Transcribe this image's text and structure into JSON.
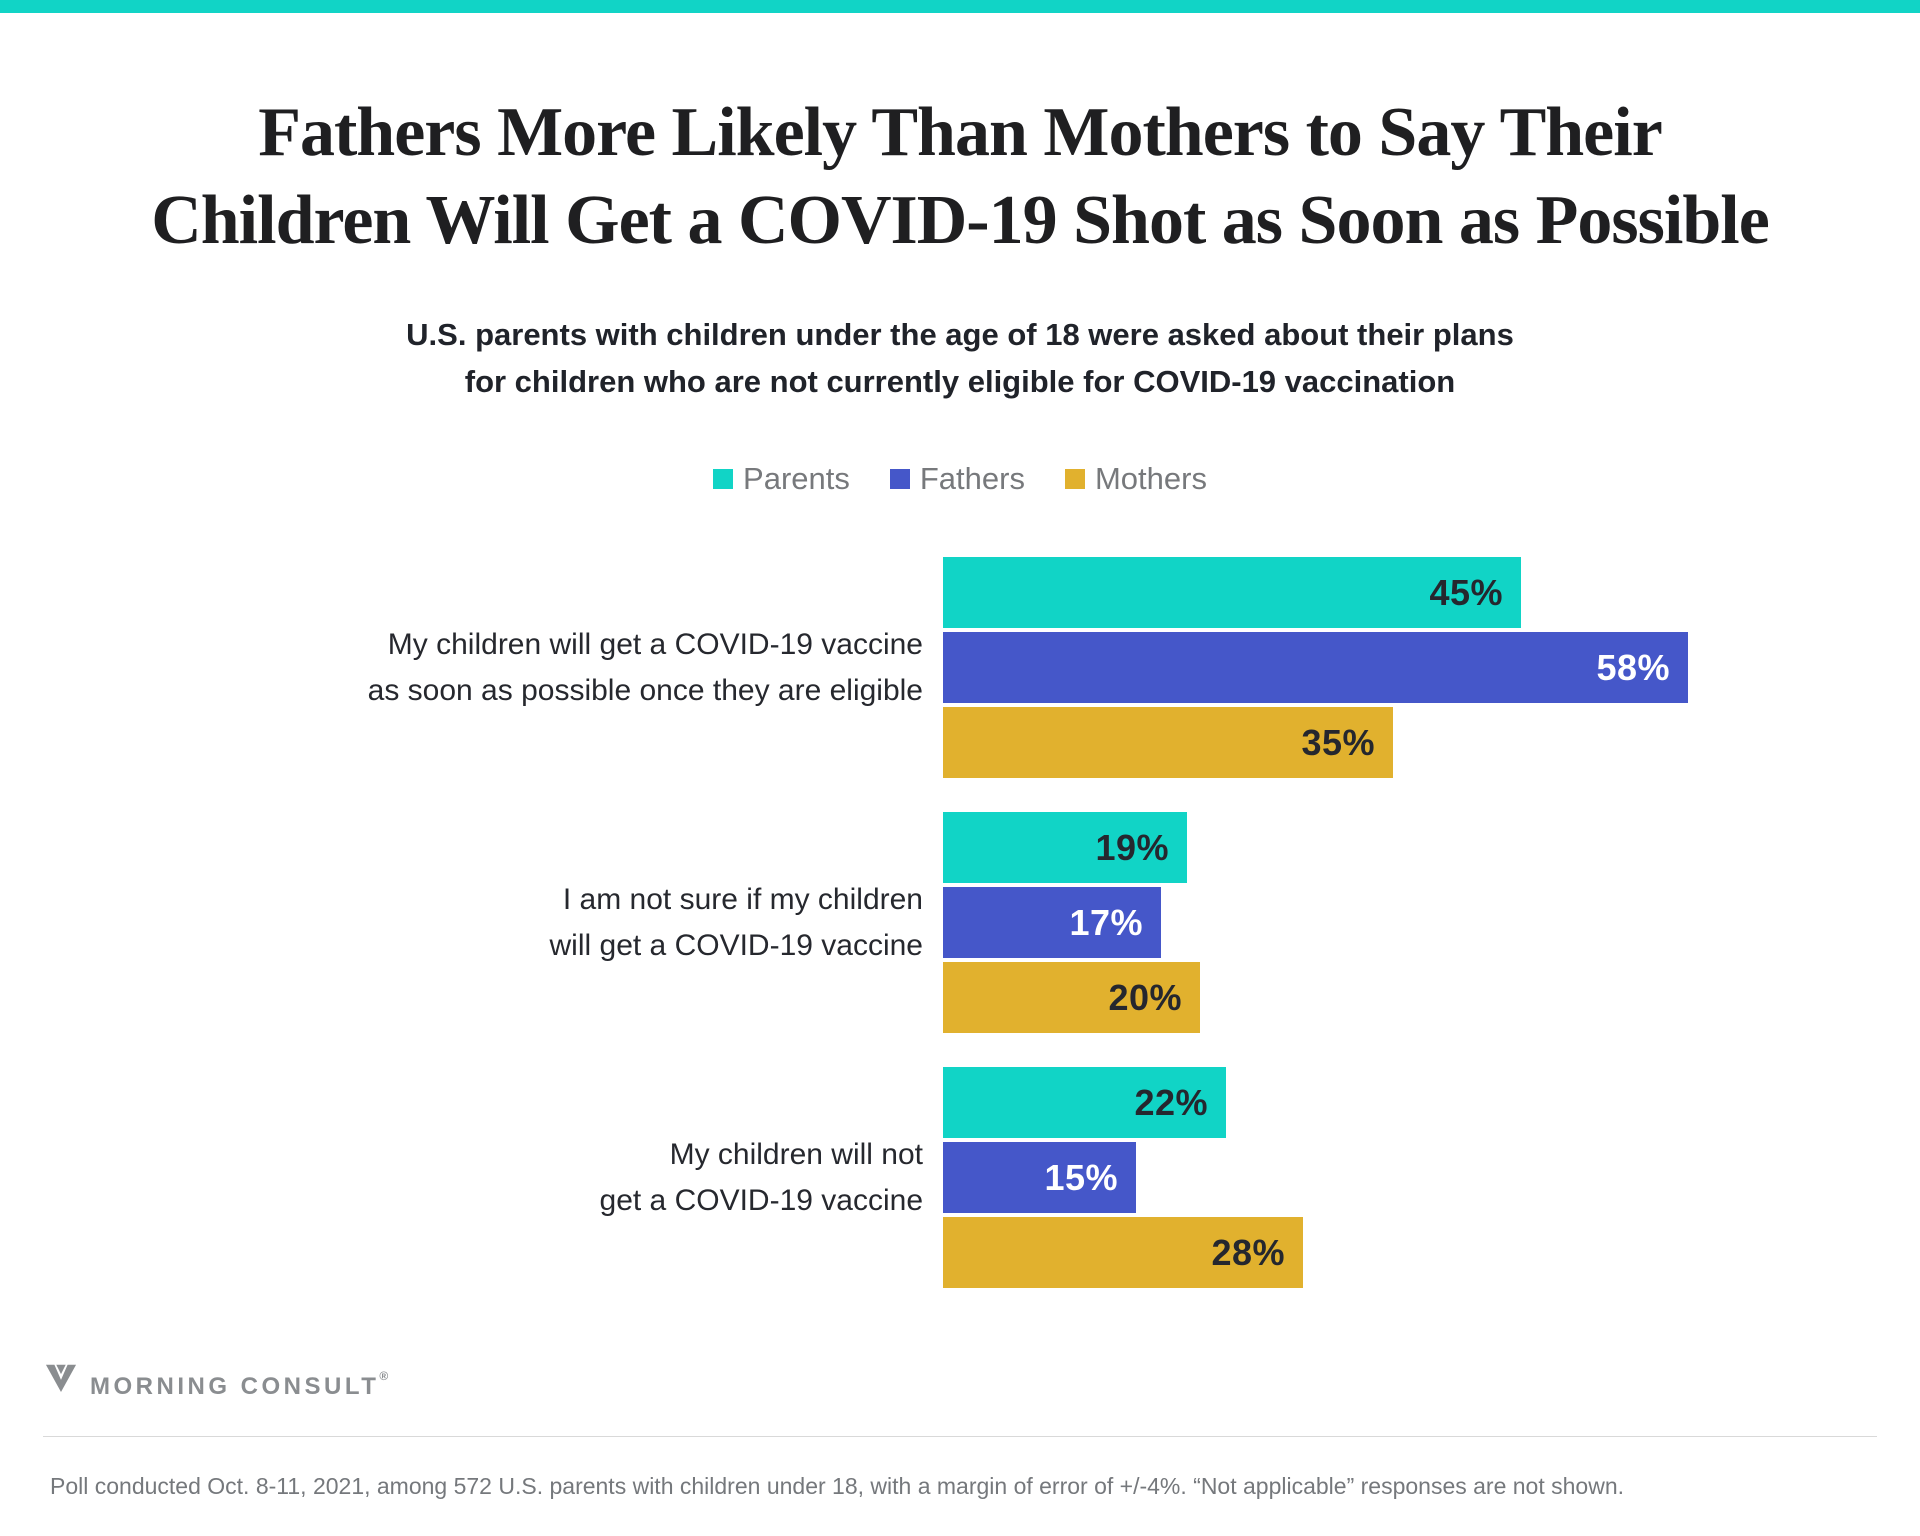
{
  "theme": {
    "teal": "#11D4C6",
    "blue": "#4557C9",
    "gold": "#E1B12E",
    "dark_value_label": "#25272E",
    "white_value_label": "#FFFFFF",
    "muted_text": "#77797c"
  },
  "header": {
    "title_line1": "Fathers More Likely Than Mothers to Say Their",
    "title_line2": "Children Will Get a COVID-19 Shot as Soon as Possible",
    "subtitle_line1": "U.S. parents with children under the age of 18 were asked about their plans",
    "subtitle_line2": "for children who are not currently eligible for COVID-19 vaccination"
  },
  "legend": [
    {
      "label": "Parents",
      "color": "#11D4C6"
    },
    {
      "label": "Fathers",
      "color": "#4557C9"
    },
    {
      "label": "Mothers",
      "color": "#E1B12E"
    }
  ],
  "chart_data": {
    "type": "bar",
    "orientation": "horizontal",
    "unit": "%",
    "value_suffix": "%",
    "xlim": [
      0,
      60
    ],
    "grid": false,
    "legend_position": "top-center",
    "categories": [
      "My children will get a COVID-19 vaccine as soon as possible once they are eligible",
      "I am not sure if my children will get a COVID-19 vaccine",
      "My children will not get a COVID-19 vaccine"
    ],
    "category_lines": [
      [
        "My children will get a COVID-19 vaccine",
        "as soon as possible once they are eligible"
      ],
      [
        "I am not sure if my children",
        "will get a COVID-19 vaccine"
      ],
      [
        "My children will not",
        "get a COVID-19 vaccine"
      ]
    ],
    "series": [
      {
        "name": "Parents",
        "color": "#11D4C6",
        "values": [
          45,
          19,
          22
        ],
        "value_label_color": "#25272E"
      },
      {
        "name": "Fathers",
        "color": "#4557C9",
        "values": [
          58,
          17,
          15
        ],
        "value_label_color": "#FFFFFF"
      },
      {
        "name": "Mothers",
        "color": "#E1B12E",
        "values": [
          35,
          20,
          28
        ],
        "value_label_color": "#25272E"
      }
    ]
  },
  "footer": {
    "logo_mark": "morning-consult-m-logo",
    "logo_text": "MORNING CONSULT",
    "registered_symbol": "®",
    "note": "Poll conducted Oct. 8-11, 2021, among 572 U.S. parents with children under 18, with a margin of error of +/-4%. “Not applicable” responses are not shown."
  }
}
